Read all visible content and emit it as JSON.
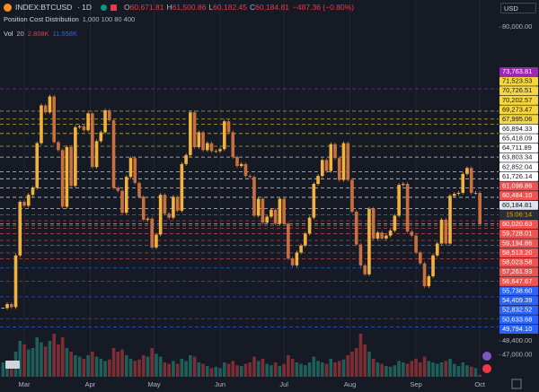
{
  "header": {
    "symbol": "INDEX:BTCUSD",
    "interval": "1D",
    "ohlc": [
      {
        "label": "O",
        "value": "60,671.81"
      },
      {
        "label": "H",
        "value": "61,500.86"
      },
      {
        "label": "L",
        "value": "60,182.45"
      },
      {
        "label": "C",
        "value": "60,184.81"
      }
    ],
    "change": "−487.36 (−0.80%)",
    "indicator": {
      "name": "Position Cost Distribution",
      "params": "1,000 100 80 400"
    },
    "volume": {
      "name": "Vol",
      "period": "20",
      "value": "2.808K",
      "ma": "11.558K"
    },
    "currency": "USD"
  },
  "chart_data": {
    "type": "candlestick",
    "ylim": [
      44789,
      82709
    ],
    "yticks": [
      {
        "value": 80000,
        "label": "80,000.00"
      },
      {
        "value": 48400,
        "label": "48,400.00"
      },
      {
        "value": 47000,
        "label": "47,000.00"
      }
    ],
    "xticks": [
      {
        "value": 0,
        "label": "Mar"
      },
      {
        "value": 31,
        "label": "Apr"
      },
      {
        "value": 61,
        "label": "May"
      },
      {
        "value": 92,
        "label": "Jun"
      },
      {
        "value": 122,
        "label": "Jul"
      },
      {
        "value": 153,
        "label": "Aug"
      },
      {
        "value": 184,
        "label": "Sep"
      },
      {
        "value": 214,
        "label": "Oct"
      }
    ],
    "up_color": "#f2b23b",
    "down_color": "#c9703e",
    "x": [
      -10,
      -8,
      -6,
      -4,
      -2,
      0,
      2,
      4,
      6,
      8,
      10,
      12,
      14,
      16,
      18,
      20,
      22,
      24,
      26,
      28,
      30,
      32,
      34,
      36,
      38,
      40,
      42,
      44,
      46,
      48,
      50,
      52,
      54,
      56,
      58,
      60,
      62,
      64,
      66,
      68,
      70,
      72,
      74,
      76,
      78,
      80,
      82,
      84,
      86,
      88,
      90,
      92,
      94,
      96,
      98,
      100,
      102,
      104,
      106,
      108,
      110,
      112,
      114,
      116,
      118,
      120,
      122,
      124,
      126,
      128,
      130,
      132,
      134,
      136,
      138,
      140,
      142,
      144,
      146,
      148,
      150,
      152,
      154,
      156,
      158,
      160,
      162,
      164,
      166,
      168,
      170,
      172,
      174,
      176,
      178,
      180,
      182,
      184,
      186,
      188,
      190,
      192,
      194,
      196,
      198,
      200,
      202,
      204,
      206,
      208,
      210,
      212,
      214
    ],
    "close": [
      51700,
      52100,
      51800,
      57000,
      62400,
      62000,
      63100,
      63800,
      68300,
      72100,
      71400,
      73000,
      68400,
      67600,
      61900,
      67900,
      64000,
      69900,
      70000,
      69600,
      71300,
      65900,
      68500,
      69400,
      71600,
      70600,
      63800,
      63500,
      61300,
      64900,
      66800,
      64300,
      62900,
      60600,
      60700,
      57800,
      59100,
      63100,
      61200,
      60800,
      62900,
      61500,
      66200,
      67100,
      71400,
      67900,
      69400,
      67600,
      68300,
      67500,
      67500,
      67700,
      70500,
      69400,
      66900,
      66000,
      66200,
      65000,
      64900,
      61000,
      62700,
      60300,
      60900,
      61600,
      60200,
      62700,
      60200,
      56700,
      56000,
      57300,
      58000,
      59200,
      60800,
      64200,
      65000,
      66600,
      65500,
      68200,
      66800,
      64600,
      68300,
      64600,
      61400,
      58100,
      56000,
      55100,
      61700,
      58700,
      59300,
      58700,
      59000,
      59500,
      61000,
      64100,
      64200,
      59400,
      59000,
      57300,
      56200,
      53900,
      54900,
      57000,
      58200,
      60600,
      58200,
      63000,
      63200,
      63300,
      65200,
      65800,
      63300,
      63300,
      60184.81
    ],
    "volume": [
      20,
      22,
      18,
      35,
      50,
      45,
      38,
      40,
      55,
      48,
      42,
      50,
      60,
      45,
      55,
      40,
      35,
      30,
      28,
      25,
      30,
      35,
      28,
      25,
      22,
      24,
      40,
      35,
      38,
      30,
      25,
      22,
      24,
      30,
      28,
      40,
      32,
      28,
      20,
      18,
      22,
      18,
      25,
      22,
      30,
      28,
      20,
      18,
      15,
      12,
      14,
      12,
      20,
      18,
      22,
      16,
      15,
      18,
      20,
      28,
      22,
      25,
      18,
      16,
      20,
      15,
      18,
      30,
      25,
      20,
      18,
      16,
      20,
      28,
      22,
      20,
      18,
      25,
      20,
      22,
      24,
      30,
      35,
      40,
      60,
      45,
      35,
      25,
      20,
      18,
      15,
      14,
      16,
      22,
      20,
      18,
      22,
      25,
      20,
      28,
      22,
      20,
      18,
      20,
      22,
      25,
      18,
      15,
      20,
      16,
      14,
      12,
      2.808
    ],
    "vol_up_color": "#1f5f58",
    "vol_down_color": "#7d2e34",
    "levels": [
      {
        "value": 73763.81,
        "label": "73,763.81",
        "color": "#9c27b0"
      },
      {
        "value": 71523.53,
        "label": "71,523.53",
        "color": "#f5d63d"
      },
      {
        "value": 70726.51,
        "label": "70,726.51",
        "color": "#f5d63d"
      },
      {
        "value": 70202.57,
        "label": "70,202.57",
        "color": "#f5d63d"
      },
      {
        "value": 69273.47,
        "label": "69,273.47",
        "color": "#f5d63d"
      },
      {
        "value": 67995.06,
        "label": "67,995.06",
        "color": "#f5d63d"
      },
      {
        "value": 66894.33,
        "label": "66,894.33",
        "color": "#ffffff"
      },
      {
        "value": 65418.09,
        "label": "65,418.09",
        "color": "#ffffff"
      },
      {
        "value": 64711.89,
        "label": "64,711.89",
        "color": "#ffffff"
      },
      {
        "value": 63803.34,
        "label": "63,803.34",
        "color": "#ffffff"
      },
      {
        "value": 62852.04,
        "label": "62,852.04",
        "color": "#ffffff"
      },
      {
        "value": 61726.14,
        "label": "61,726.14",
        "color": "#ffffff"
      },
      {
        "value": 61098.86,
        "label": "61,098.86",
        "color": "#ef5350"
      },
      {
        "value": 60484.1,
        "label": "60,484.10",
        "color": "#ef5350"
      },
      {
        "value": 60184.81,
        "label": "60,184.81",
        "color": "#e0e3eb",
        "countdown": "15:06:14"
      },
      {
        "value": 60020.63,
        "label": "60,020.63",
        "color": "#ef5350"
      },
      {
        "value": 59728.01,
        "label": "59,728.01",
        "color": "#ef5350"
      },
      {
        "value": 59194.86,
        "label": "59,194.86",
        "color": "#ef5350"
      },
      {
        "value": 58513.2,
        "label": "58,513.20",
        "color": "#ef5350"
      },
      {
        "value": 58023.58,
        "label": "58,023.58",
        "color": "#ef5350"
      },
      {
        "value": 57261.93,
        "label": "57,261.93",
        "color": "#ef5350"
      },
      {
        "value": 56647.67,
        "label": "56,647.67",
        "color": "#ef5350"
      },
      {
        "value": 55738.6,
        "label": "55,738.60",
        "color": "#2962ff"
      },
      {
        "value": 54409.39,
        "label": "54,409.39",
        "color": "#2962ff"
      },
      {
        "value": 52832.52,
        "label": "52,832.52",
        "color": "#2962ff"
      },
      {
        "value": 50633.68,
        "label": "50,633.68",
        "color": "#2962ff"
      },
      {
        "value": 49794.1,
        "label": "49,794.10",
        "color": "#2962ff"
      }
    ]
  }
}
